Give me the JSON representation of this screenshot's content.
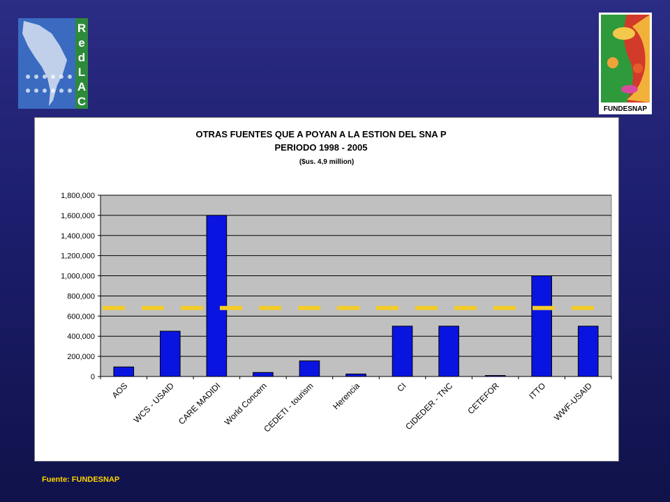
{
  "logos": {
    "left_text": "RedLAC",
    "right_text": "FUNDESNAP"
  },
  "footer": {
    "source": "Fuente: FUNDESNAP"
  },
  "colors": {
    "bar": "#0a14e0",
    "plot_bg": "#c0c0c0",
    "average_line": "#f2cc2a",
    "footer_text": "#ffd400"
  },
  "chart_data": {
    "type": "bar",
    "title": "OTRAS FUENTES QUE A POYAN A LA ESTION DEL SNA P",
    "subtitle": "PERIODO 1998 - 2005",
    "subtitle2": "($us. 4,9 million)",
    "categories": [
      "AOS",
      "WCS - USAID",
      "CARE MADIDI",
      "World Concern",
      "CEDETI - tourism",
      "Herencia",
      "CI",
      "CIDEDER - TNC",
      "CETEFOR",
      "ITTO",
      "WWF-USAID"
    ],
    "values": [
      95000,
      450000,
      1600000,
      40000,
      155000,
      25000,
      500000,
      500000,
      10000,
      1000000,
      500000
    ],
    "average": 680000,
    "ylim": [
      0,
      1800000
    ],
    "yticks": [
      "0",
      "200,000",
      "400,000",
      "600,000",
      "800,000",
      "1,000,000",
      "1,200,000",
      "1,400,000",
      "1,600,000",
      "1,800,000"
    ],
    "ytick_values": [
      0,
      200000,
      400000,
      600000,
      800000,
      1000000,
      1200000,
      1400000,
      1600000,
      1800000
    ],
    "grid": true,
    "legend": "none"
  }
}
